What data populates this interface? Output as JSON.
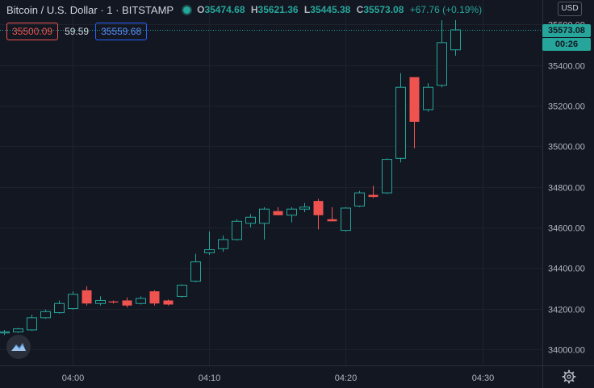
{
  "header": {
    "symbol_title": "Bitcoin / U.S. Dollar · 1 · BITSTAMP",
    "ohlc": {
      "o_label": "O",
      "o": "35474.68",
      "h_label": "H",
      "h": "35621.36",
      "l_label": "L",
      "l": "35445.38",
      "c_label": "C",
      "c": "35573.08",
      "change": "+67.76 (+0.19%)"
    }
  },
  "trade": {
    "sell_price": "35500.09",
    "spread": "59.59",
    "buy_price": "35559.68"
  },
  "currency_label": "USD",
  "last_price": {
    "value": "35573.08",
    "countdown": "00:26"
  },
  "colors": {
    "up": "#26a69a",
    "down": "#ef5350",
    "background": "#131722",
    "grid": "#1e222d",
    "text": "#b2b5be"
  },
  "chart_data": {
    "type": "candlestick",
    "x_tick_labels": [
      "04:00",
      "04:10",
      "04:20",
      "04:30"
    ],
    "y_tick_labels": [
      "34000.00",
      "34200.00",
      "34400.00",
      "34600.00",
      "34800.00",
      "35000.00",
      "35200.00",
      "35400.00",
      "35600.00"
    ],
    "x_ticks_minutes": [
      0,
      10,
      20,
      30
    ],
    "y_ticks": [
      34000,
      34200,
      34400,
      34600,
      34800,
      35000,
      35200,
      35400,
      35600
    ],
    "ylim": [
      33920,
      35720
    ],
    "xlim_minutes": [
      -5.3,
      34.4
    ],
    "grid": true,
    "candles": [
      {
        "t": -5,
        "o": 34080,
        "h": 34095,
        "l": 34070,
        "c": 34085
      },
      {
        "t": -4,
        "o": 34085,
        "h": 34105,
        "l": 34080,
        "c": 34100
      },
      {
        "t": -3,
        "o": 34095,
        "h": 34170,
        "l": 34090,
        "c": 34155
      },
      {
        "t": -2,
        "o": 34155,
        "h": 34195,
        "l": 34150,
        "c": 34185
      },
      {
        "t": -1,
        "o": 34180,
        "h": 34240,
        "l": 34175,
        "c": 34225
      },
      {
        "t": 0,
        "o": 34200,
        "h": 34285,
        "l": 34195,
        "c": 34270
      },
      {
        "t": 1,
        "o": 34290,
        "h": 34310,
        "l": 34215,
        "c": 34225
      },
      {
        "t": 2,
        "o": 34225,
        "h": 34260,
        "l": 34215,
        "c": 34240
      },
      {
        "t": 3,
        "o": 34235,
        "h": 34240,
        "l": 34225,
        "c": 34230
      },
      {
        "t": 4,
        "o": 34240,
        "h": 34255,
        "l": 34205,
        "c": 34215
      },
      {
        "t": 5,
        "o": 34225,
        "h": 34260,
        "l": 34220,
        "c": 34250
      },
      {
        "t": 6,
        "o": 34285,
        "h": 34290,
        "l": 34215,
        "c": 34225
      },
      {
        "t": 7,
        "o": 34240,
        "h": 34245,
        "l": 34215,
        "c": 34220
      },
      {
        "t": 8,
        "o": 34260,
        "h": 34320,
        "l": 34255,
        "c": 34315
      },
      {
        "t": 9,
        "o": 34335,
        "h": 34470,
        "l": 34330,
        "c": 34430
      },
      {
        "t": 10,
        "o": 34475,
        "h": 34580,
        "l": 34465,
        "c": 34490
      },
      {
        "t": 11,
        "o": 34495,
        "h": 34560,
        "l": 34480,
        "c": 34540
      },
      {
        "t": 12,
        "o": 34540,
        "h": 34640,
        "l": 34535,
        "c": 34630
      },
      {
        "t": 13,
        "o": 34620,
        "h": 34665,
        "l": 34600,
        "c": 34650
      },
      {
        "t": 14,
        "o": 34620,
        "h": 34700,
        "l": 34540,
        "c": 34690
      },
      {
        "t": 15,
        "o": 34680,
        "h": 34700,
        "l": 34660,
        "c": 34660
      },
      {
        "t": 16,
        "o": 34660,
        "h": 34700,
        "l": 34625,
        "c": 34690
      },
      {
        "t": 17,
        "o": 34690,
        "h": 34720,
        "l": 34675,
        "c": 34700
      },
      {
        "t": 18,
        "o": 34730,
        "h": 34740,
        "l": 34590,
        "c": 34660
      },
      {
        "t": 19,
        "o": 34640,
        "h": 34700,
        "l": 34630,
        "c": 34630
      },
      {
        "t": 20,
        "o": 34585,
        "h": 34700,
        "l": 34580,
        "c": 34695
      },
      {
        "t": 21,
        "o": 34705,
        "h": 34780,
        "l": 34700,
        "c": 34770
      },
      {
        "t": 22,
        "o": 34760,
        "h": 34805,
        "l": 34745,
        "c": 34750
      },
      {
        "t": 23,
        "o": 34770,
        "h": 34940,
        "l": 34765,
        "c": 34935
      },
      {
        "t": 24,
        "o": 34940,
        "h": 35360,
        "l": 34920,
        "c": 35290
      },
      {
        "t": 25,
        "o": 35340,
        "h": 35340,
        "l": 34990,
        "c": 35120
      },
      {
        "t": 26,
        "o": 35180,
        "h": 35310,
        "l": 35170,
        "c": 35290
      },
      {
        "t": 27,
        "o": 35300,
        "h": 35620,
        "l": 35290,
        "c": 35510
      },
      {
        "t": 28,
        "o": 35474.68,
        "h": 35621.36,
        "l": 35445.38,
        "c": 35573.08
      }
    ]
  }
}
